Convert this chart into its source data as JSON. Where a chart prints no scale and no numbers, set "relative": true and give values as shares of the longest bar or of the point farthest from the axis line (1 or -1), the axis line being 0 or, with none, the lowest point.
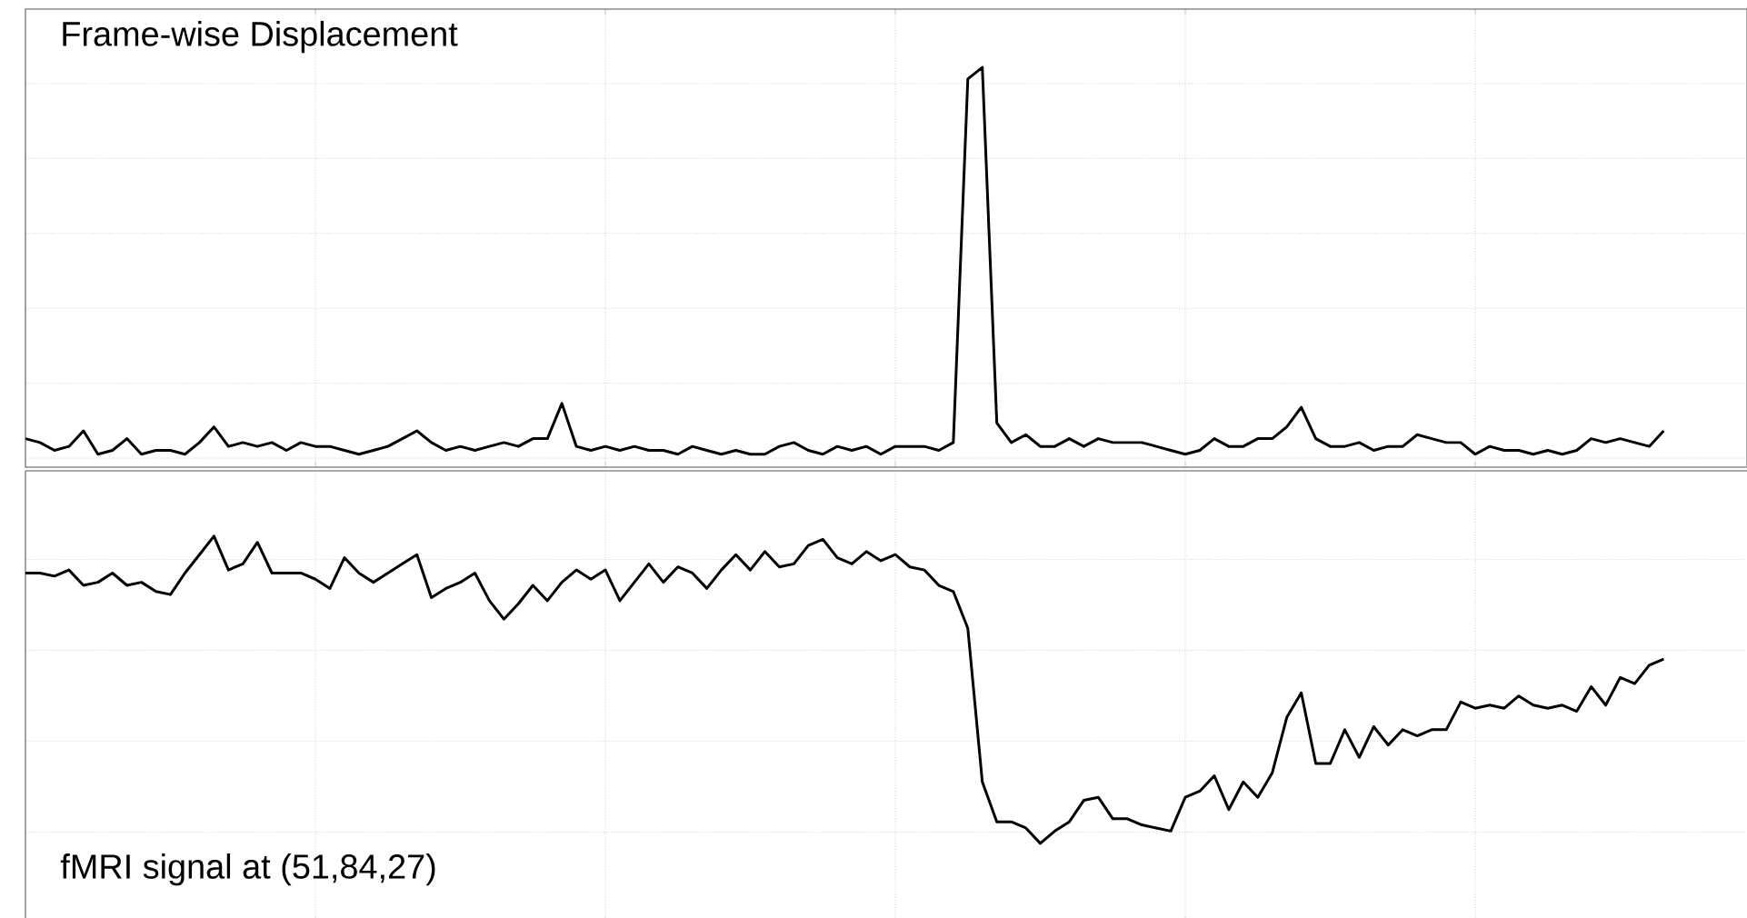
{
  "chart_data": [
    {
      "type": "line",
      "title": "Frame-wise Displacement",
      "relative": true,
      "grid": true,
      "tick_labels": false,
      "color": "#000000",
      "categories": [
        null,
        null,
        null,
        null,
        null,
        null,
        null,
        null,
        null,
        null,
        null,
        null,
        null,
        null,
        null,
        null,
        null,
        null,
        null,
        null,
        null,
        null,
        null,
        null,
        null,
        null,
        null,
        null,
        null,
        null,
        null,
        null,
        null,
        null,
        null,
        null,
        null,
        null,
        null,
        null,
        null,
        null,
        null,
        null,
        null,
        null,
        null,
        null,
        null,
        null,
        null,
        null,
        null,
        null,
        null,
        null,
        null,
        null,
        null,
        null,
        null,
        null,
        null,
        null,
        null,
        null,
        null,
        null,
        null,
        null,
        null,
        null,
        null,
        null,
        null,
        null,
        null,
        null,
        null,
        null,
        null,
        null,
        null,
        null,
        null,
        null,
        null,
        null,
        null,
        null,
        null,
        null,
        null,
        null,
        null,
        null,
        null,
        null,
        null,
        null,
        null,
        null,
        null,
        null,
        null,
        null,
        null,
        null,
        null,
        null,
        null,
        null,
        null,
        null
      ],
      "values": [
        0.05,
        0.04,
        0.02,
        0.03,
        0.07,
        0.01,
        0.02,
        0.05,
        0.01,
        0.02,
        0.02,
        0.01,
        0.04,
        0.08,
        0.03,
        0.04,
        0.03,
        0.04,
        0.02,
        0.04,
        0.03,
        0.03,
        0.02,
        0.01,
        0.02,
        0.03,
        0.05,
        0.07,
        0.04,
        0.02,
        0.03,
        0.02,
        0.03,
        0.04,
        0.03,
        0.05,
        0.05,
        0.14,
        0.03,
        0.02,
        0.03,
        0.02,
        0.03,
        0.02,
        0.02,
        0.01,
        0.03,
        0.02,
        0.01,
        0.02,
        0.01,
        0.01,
        0.03,
        0.04,
        0.02,
        0.01,
        0.03,
        0.02,
        0.03,
        0.01,
        0.03,
        0.03,
        0.03,
        0.02,
        0.04,
        0.97,
        1.0,
        0.09,
        0.04,
        0.06,
        0.03,
        0.03,
        0.05,
        0.03,
        0.05,
        0.04,
        0.04,
        0.04,
        0.03,
        0.02,
        0.01,
        0.02,
        0.05,
        0.03,
        0.03,
        0.05,
        0.05,
        0.08,
        0.13,
        0.05,
        0.03,
        0.03,
        0.04,
        0.02,
        0.03,
        0.03,
        0.06,
        0.05,
        0.04,
        0.04,
        0.01,
        0.03,
        0.02,
        0.02,
        0.01,
        0.02,
        0.01,
        0.02,
        0.05,
        0.04,
        0.05,
        0.04,
        0.03,
        0.07
      ]
    },
    {
      "type": "line",
      "title": "fMRI signal at (51,84,27)",
      "relative": true,
      "grid": true,
      "tick_labels": false,
      "color": "#000000",
      "categories": [
        null,
        null,
        null,
        null,
        null,
        null,
        null,
        null,
        null,
        null,
        null,
        null,
        null,
        null,
        null,
        null,
        null,
        null,
        null,
        null,
        null,
        null,
        null,
        null,
        null,
        null,
        null,
        null,
        null,
        null,
        null,
        null,
        null,
        null,
        null,
        null,
        null,
        null,
        null,
        null,
        null,
        null,
        null,
        null,
        null,
        null,
        null,
        null,
        null,
        null,
        null,
        null,
        null,
        null,
        null,
        null,
        null,
        null,
        null,
        null,
        null,
        null,
        null,
        null,
        null,
        null,
        null,
        null,
        null,
        null,
        null,
        null,
        null,
        null,
        null,
        null,
        null,
        null,
        null,
        null,
        null,
        null,
        null,
        null,
        null,
        null,
        null,
        null,
        null,
        null,
        null,
        null,
        null,
        null,
        null,
        null,
        null,
        null,
        null,
        null,
        null,
        null,
        null,
        null,
        null,
        null,
        null,
        null,
        null,
        null,
        null,
        null,
        null,
        null
      ],
      "values": [
        0.88,
        0.88,
        0.87,
        0.89,
        0.84,
        0.85,
        0.88,
        0.84,
        0.85,
        0.82,
        0.81,
        0.88,
        0.94,
        1.0,
        0.89,
        0.91,
        0.98,
        0.88,
        0.88,
        0.88,
        0.86,
        0.83,
        0.93,
        0.88,
        0.85,
        0.88,
        0.91,
        0.94,
        0.8,
        0.83,
        0.85,
        0.88,
        0.79,
        0.73,
        0.78,
        0.84,
        0.79,
        0.85,
        0.89,
        0.86,
        0.89,
        0.79,
        0.85,
        0.91,
        0.85,
        0.9,
        0.88,
        0.83,
        0.89,
        0.94,
        0.89,
        0.95,
        0.9,
        0.91,
        0.97,
        0.99,
        0.93,
        0.91,
        0.95,
        0.92,
        0.94,
        0.9,
        0.89,
        0.84,
        0.82,
        0.7,
        0.2,
        0.07,
        0.07,
        0.05,
        0.0,
        0.04,
        0.07,
        0.14,
        0.15,
        0.08,
        0.08,
        0.06,
        0.05,
        0.04,
        0.15,
        0.17,
        0.22,
        0.11,
        0.2,
        0.15,
        0.23,
        0.41,
        0.49,
        0.26,
        0.26,
        0.37,
        0.28,
        0.38,
        0.32,
        0.37,
        0.35,
        0.37,
        0.37,
        0.46,
        0.44,
        0.45,
        0.44,
        0.48,
        0.45,
        0.44,
        0.45,
        0.43,
        0.51,
        0.45,
        0.54,
        0.52,
        0.58,
        0.6
      ]
    }
  ]
}
